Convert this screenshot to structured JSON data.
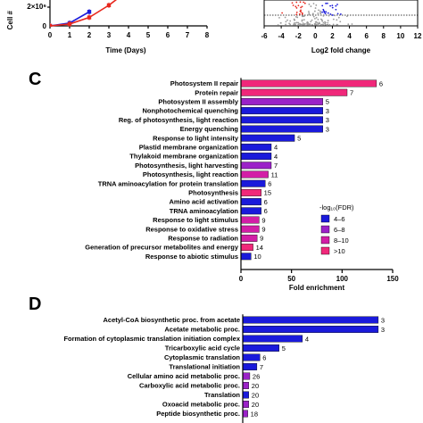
{
  "colors": {
    "blue": "#1a1adb",
    "purple": "#9b22c8",
    "magenta": "#d21ea6",
    "pink": "#f0287a",
    "red": "#e8281e",
    "gray": "#9a9a9a"
  },
  "panel_a": {
    "ylabel": "Cell #",
    "ytick_label": "2×10⁶",
    "ytick_zero": "0",
    "xlabel": "Time (Days)",
    "xticks": [
      "0",
      "1",
      "2",
      "3",
      "4",
      "5",
      "6",
      "7",
      "8"
    ]
  },
  "panel_b": {
    "xlabel": "Log2 fold change",
    "xticks": [
      "-6",
      "-4",
      "-2",
      "0",
      "2",
      "4",
      "6",
      "8",
      "10",
      "12"
    ]
  },
  "panel_c": {
    "letter": "C",
    "xlabel": "Fold enrichment",
    "xticks": [
      "0",
      "50",
      "100",
      "150"
    ],
    "legend_title": "-log₁₀(FDR)",
    "legend": [
      "4–6",
      "6–8",
      "8–10",
      ">10"
    ]
  },
  "panel_d": {
    "letter": "D"
  },
  "chart_data": [
    {
      "type": "line",
      "panel": "A",
      "xlabel": "Time (Days)",
      "ylabel": "Cell #",
      "xlim": [
        0,
        8
      ],
      "series": [
        {
          "color": "blue",
          "x": [
            0,
            1,
            2
          ],
          "y": [
            0,
            0.3,
            1.5
          ]
        },
        {
          "color": "red",
          "x": [
            0,
            1,
            2,
            3,
            4
          ],
          "y": [
            0,
            0.2,
            0.9,
            2.2,
            3.8
          ]
        }
      ]
    },
    {
      "type": "scatter",
      "panel": "B",
      "xlabel": "Log2 fold change",
      "xlim": [
        -6,
        12
      ],
      "threshold_line": true
    },
    {
      "type": "bar",
      "orientation": "horizontal",
      "panel": "C",
      "xlabel": "Fold enrichment",
      "xlim": [
        0,
        150
      ],
      "categories": [
        "Photosystem II repair",
        "Protein repair",
        "Photosystem II assembly",
        "Nonphotochemical quenching",
        "Reg. of photosynthesis, light reaction",
        "Energy quenching",
        "Response to light intensity",
        "Plastid membrane organization",
        "Thylakoid membrane organization",
        "Photosynthesis, light harvesting",
        "Photosynthesis, light reaction",
        "TRNA aminoacylation for protein translation",
        "Photosynthesis",
        "Amino acid activation",
        "TRNA aminoacylation",
        "Response to light stimulus",
        "Response to oxidative stress",
        "Response to radiation",
        "Generation of precursor metabolites and energy",
        "Response to abiotic stimulus"
      ],
      "values": [
        134,
        105,
        81,
        81,
        81,
        81,
        53,
        30,
        30,
        30,
        27,
        24,
        20,
        20,
        20,
        18,
        18,
        16,
        12,
        10
      ],
      "counts": [
        "6",
        "7",
        "5",
        "3",
        "3",
        "3",
        "5",
        "4",
        "4",
        "7",
        "11",
        "6",
        "15",
        "6",
        "6",
        "9",
        "9",
        "9",
        "14",
        "10"
      ],
      "fdr_bin": [
        3,
        3,
        1,
        0,
        0,
        0,
        0,
        0,
        0,
        1,
        2,
        0,
        3,
        0,
        0,
        2,
        2,
        2,
        3,
        0
      ],
      "legend_title": "-log₁₀(FDR)",
      "legend": [
        "4–6",
        "6–8",
        "8–10",
        ">10"
      ]
    },
    {
      "type": "bar",
      "orientation": "horizontal",
      "panel": "D",
      "xlim": [
        0,
        150
      ],
      "categories": [
        "Acetyl-CoA biosynthetic proc. from acetate",
        "Acetate metabolic proc.",
        "Formation of cytoplasmic translation initiation complex",
        "Tricarboxylic acid cycle",
        "Cytoplasmic translation",
        "Translational initiation",
        "Cellular amino acid metabolic proc.",
        "Carboxylic acid metabolic proc.",
        "Translation",
        "Oxoacid metabolic proc.",
        "Peptide biosynthetic proc."
      ],
      "values": [
        134,
        134,
        59,
        36,
        17,
        14,
        7,
        6,
        6,
        6,
        5
      ],
      "counts": [
        "3",
        "3",
        "4",
        "5",
        "6",
        "7",
        "26",
        "20",
        "20",
        "20",
        "18"
      ],
      "fdr_bin": [
        0,
        0,
        0,
        0,
        0,
        0,
        1,
        1,
        0,
        1,
        1
      ]
    }
  ]
}
